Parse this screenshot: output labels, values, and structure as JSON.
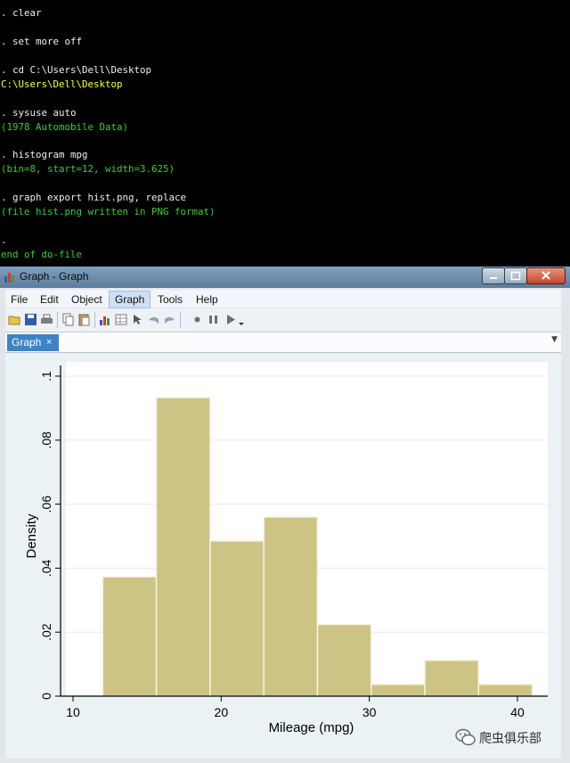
{
  "console": {
    "lines": [
      {
        "text": ". clear",
        "color": "white"
      },
      {
        "text": ". set more off",
        "color": "white"
      },
      {
        "text": ". cd C:\\Users\\Dell\\Desktop",
        "color": "white"
      },
      {
        "text": "C:\\Users\\Dell\\Desktop",
        "color": "yellow"
      },
      {
        "text": ". sysuse auto",
        "color": "white"
      },
      {
        "text": "(1978 Automobile Data)",
        "color": "green"
      },
      {
        "text": ". histogram mpg",
        "color": "white"
      },
      {
        "text": "(bin=8, start=12, width=3.625)",
        "color": "green"
      },
      {
        "text": ". graph export hist.png, replace",
        "color": "white"
      },
      {
        "text": "(file hist.png written in PNG format)",
        "color": "green"
      },
      {
        "text": ".",
        "color": "white"
      },
      {
        "text": "end of do-file",
        "color": "green"
      }
    ]
  },
  "window": {
    "title": "Graph - Graph",
    "menu": [
      "File",
      "Edit",
      "Object",
      "Graph",
      "Tools",
      "Help"
    ],
    "active_menu": "Graph",
    "tab_label": "Graph",
    "tab_close": "×",
    "toolbar_icons": [
      "open-icon",
      "save-icon",
      "print-icon",
      "copy-icon",
      "paste-icon",
      "graph-editor-icon",
      "data-editor-icon",
      "pointer-icon",
      "undo-icon",
      "redo-icon",
      "record-icon",
      "pause-icon",
      "play-icon"
    ]
  },
  "chart_data": {
    "type": "bar",
    "subtype": "histogram",
    "xlabel": "Mileage (mpg)",
    "ylabel": "Density",
    "bin_start": 12,
    "bin_width": 3.625,
    "bins": 8,
    "x_ticks": [
      10,
      20,
      30,
      40
    ],
    "y_ticks": [
      0,
      0.02,
      0.04,
      0.06,
      0.08,
      0.1
    ],
    "y_tick_labels": [
      "0",
      ".02",
      ".04",
      ".06",
      ".08",
      ".1"
    ],
    "xlim": [
      9,
      42
    ],
    "ylim": [
      0,
      0.1
    ],
    "values": [
      0.0373,
      0.0933,
      0.0485,
      0.056,
      0.0224,
      0.0037,
      0.0112,
      0.0037
    ],
    "grid": true,
    "bar_color": "#cdc385",
    "bar_edge": "#f4f2e4"
  },
  "watermark": {
    "text": "爬虫俱乐部"
  }
}
